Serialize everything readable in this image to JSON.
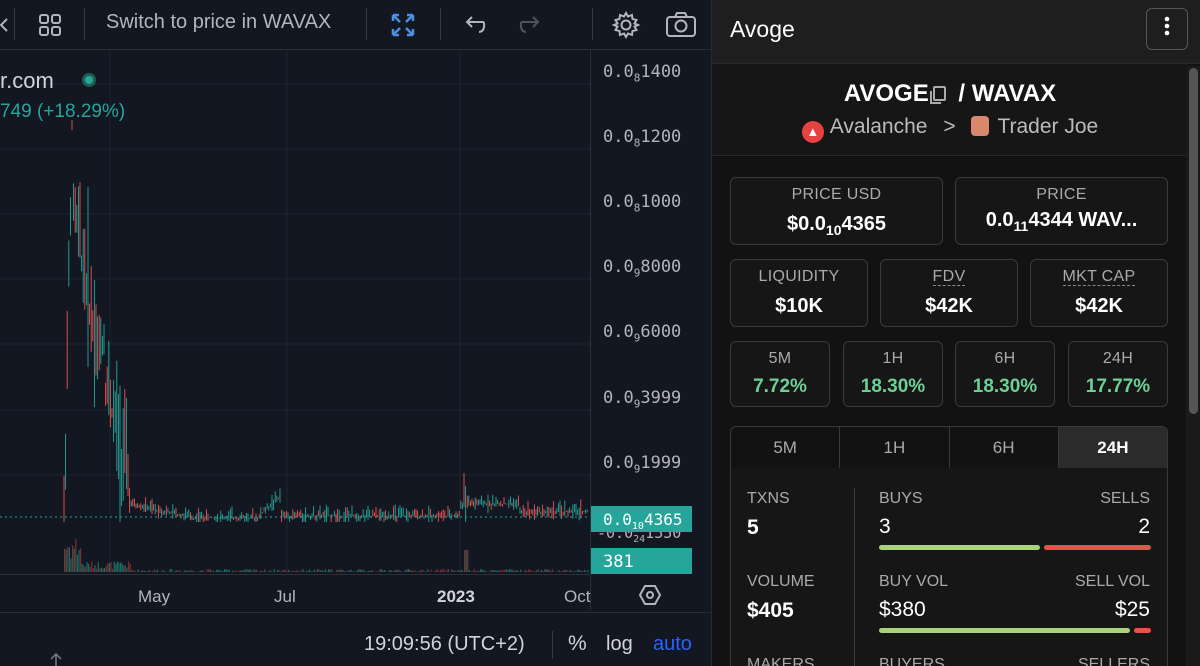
{
  "toolbar": {
    "switch_label": "Switch to price in WAVAX",
    "icons": [
      "back-arrow-icon",
      "indicators-grid-icon",
      "fullscreen-icon",
      "undo-icon",
      "redo-icon",
      "settings-gear-icon",
      "camera-icon"
    ]
  },
  "legend": {
    "site": "r.com",
    "change": "749 (+18.29%)"
  },
  "price_axis": {
    "ticks": [
      {
        "lead": "0.0",
        "sub": "8",
        "tail": "1400"
      },
      {
        "lead": "0.0",
        "sub": "8",
        "tail": "1200"
      },
      {
        "lead": "0.0",
        "sub": "8",
        "tail": "1000"
      },
      {
        "lead": "0.0",
        "sub": "9",
        "tail": "8000"
      },
      {
        "lead": "0.0",
        "sub": "9",
        "tail": "6000"
      },
      {
        "lead": "0.0",
        "sub": "9",
        "tail": "3999"
      },
      {
        "lead": "0.0",
        "sub": "9",
        "tail": "1999"
      }
    ],
    "current_price": {
      "lead": "0.0",
      "sub": "10",
      "tail": "4365"
    },
    "under_label": {
      "lead": "-0.0",
      "sub": "24",
      "tail": "1550"
    },
    "volume_label": "381"
  },
  "time_axis": {
    "ticks": [
      "May",
      "Jul",
      "2023",
      "Oct"
    ]
  },
  "bottom_bar": {
    "clock": "19:09:56 (UTC+2)",
    "percent": "%",
    "log": "log",
    "auto": "auto"
  },
  "colors": {
    "up": "#26a69a",
    "down": "#ef5350",
    "accent_blue": "#2962ff",
    "change_green": "#6fcf97"
  },
  "panel": {
    "title": "Avoge",
    "base": "AVOGE",
    "slash": "/",
    "quote": "WAVAX",
    "chain": "Avalanche",
    "chevron": ">",
    "dex": "Trader Joe",
    "price_usd": {
      "label": "PRICE USD",
      "lead": "$0.0",
      "sub": "10",
      "tail": "4365"
    },
    "price_native": {
      "label": "PRICE",
      "lead": "0.0",
      "sub": "11",
      "tail": "4344 WAV..."
    },
    "liquidity": {
      "label": "LIQUIDITY",
      "value": "$10K"
    },
    "fdv": {
      "label": "FDV",
      "value": "$42K"
    },
    "mkt_cap": {
      "label": "MKT CAP",
      "value": "$42K"
    },
    "changes": [
      {
        "label": "5M",
        "value": "7.72%"
      },
      {
        "label": "1H",
        "value": "18.30%"
      },
      {
        "label": "6H",
        "value": "18.30%"
      },
      {
        "label": "24H",
        "value": "17.77%"
      }
    ],
    "tabs": [
      "5M",
      "1H",
      "6H",
      "24H"
    ],
    "active_tab": "24H",
    "stats": {
      "txns_label": "TXNS",
      "txns": "5",
      "buys_label": "BUYS",
      "buys": "3",
      "sells_label": "SELLS",
      "sells": "2",
      "buys_fraction": 0.6,
      "volume_label": "VOLUME",
      "volume": "$405",
      "buy_vol_label": "BUY VOL",
      "buy_vol": "$380",
      "sell_vol_label": "SELL VOL",
      "sell_vol": "$25",
      "buy_vol_fraction": 0.938,
      "makers_label": "MAKERS",
      "buyers_label": "BUYERS",
      "sellers_label": "SELLERS"
    }
  }
}
